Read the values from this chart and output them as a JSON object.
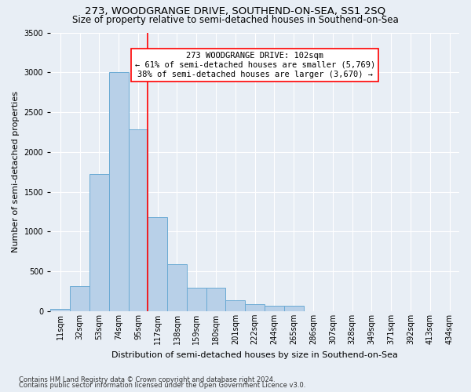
{
  "title": "273, WOODGRANGE DRIVE, SOUTHEND-ON-SEA, SS1 2SQ",
  "subtitle": "Size of property relative to semi-detached houses in Southend-on-Sea",
  "xlabel": "Distribution of semi-detached houses by size in Southend-on-Sea",
  "ylabel": "Number of semi-detached properties",
  "footnote1": "Contains HM Land Registry data © Crown copyright and database right 2024.",
  "footnote2": "Contains public sector information licensed under the Open Government Licence v3.0.",
  "categories": [
    "11sqm",
    "32sqm",
    "53sqm",
    "74sqm",
    "95sqm",
    "117sqm",
    "138sqm",
    "159sqm",
    "180sqm",
    "201sqm",
    "222sqm",
    "244sqm",
    "265sqm",
    "286sqm",
    "307sqm",
    "328sqm",
    "349sqm",
    "371sqm",
    "392sqm",
    "413sqm",
    "434sqm"
  ],
  "values": [
    30,
    310,
    1720,
    3000,
    2280,
    1180,
    590,
    295,
    295,
    140,
    90,
    70,
    65,
    0,
    0,
    0,
    0,
    0,
    0,
    0,
    0
  ],
  "bar_color": "#b8d0e8",
  "bar_edge_color": "#6aaad4",
  "vline_color": "red",
  "annotation_text": "273 WOODGRANGE DRIVE: 102sqm\n← 61% of semi-detached houses are smaller (5,769)\n38% of semi-detached houses are larger (3,670) →",
  "annotation_box_color": "white",
  "annotation_box_edge": "red",
  "ylim": [
    0,
    3500
  ],
  "background_color": "#e8eef5",
  "plot_bg_color": "#e8eef5",
  "grid_color": "white",
  "title_fontsize": 9.5,
  "subtitle_fontsize": 8.5,
  "xlabel_fontsize": 8,
  "ylabel_fontsize": 8,
  "tick_fontsize": 7,
  "annotation_fontsize": 7.5,
  "footnote_fontsize": 6
}
